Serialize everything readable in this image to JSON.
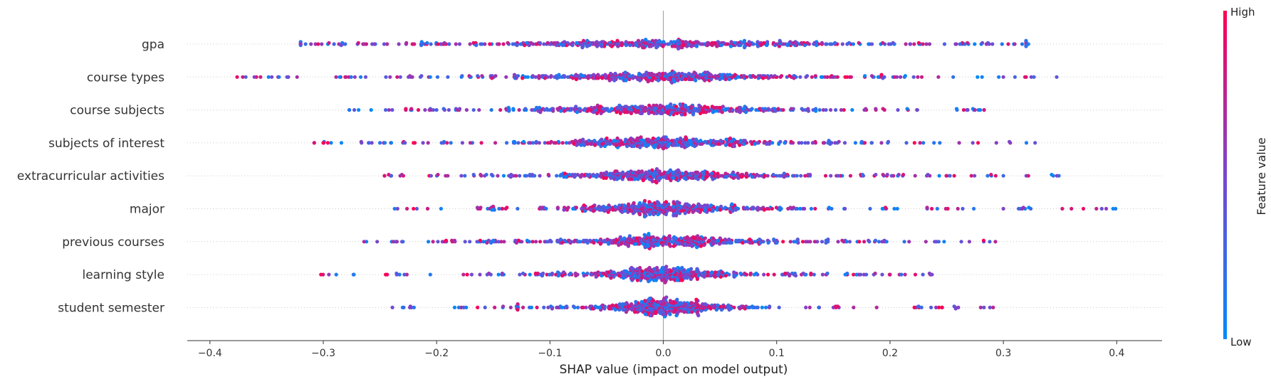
{
  "chart_data": {
    "type": "scatter",
    "subtype": "beeswarm",
    "title": "",
    "xlabel": "SHAP value (impact on model output)",
    "ylabel": "",
    "xlim": [
      -0.42,
      0.44
    ],
    "xticks": [
      -0.4,
      -0.3,
      -0.2,
      -0.1,
      0.0,
      0.1,
      0.2,
      0.3,
      0.4
    ],
    "xtick_labels": [
      "−0.4",
      "−0.3",
      "−0.2",
      "−0.1",
      "0.0",
      "0.1",
      "0.2",
      "0.3",
      "0.4"
    ],
    "grid": false,
    "colorbar": {
      "label": "Feature value",
      "high_label": "High",
      "low_label": "Low",
      "low_color": "#008bfb",
      "high_color": "#ff0052"
    },
    "features": [
      {
        "name": "gpa",
        "min": -0.32,
        "max": 0.32,
        "spread": 0.07,
        "extreme_values": [
          -0.32,
          -0.262,
          -0.255,
          0.285,
          0.31,
          0.322
        ]
      },
      {
        "name": "course types",
        "min": -0.376,
        "max": 0.347,
        "spread": 0.05,
        "extreme_values": [
          -0.376,
          -0.339,
          -0.332,
          -0.28,
          -0.267,
          0.3,
          0.32,
          0.347
        ]
      },
      {
        "name": "course subjects",
        "min": -0.277,
        "max": 0.283,
        "spread": 0.045,
        "extreme_values": [
          -0.277,
          -0.245,
          0.265,
          0.275,
          0.283
        ]
      },
      {
        "name": "subjects of interest",
        "min": -0.308,
        "max": 0.328,
        "spread": 0.04,
        "extreme_values": [
          -0.308,
          -0.3,
          -0.26,
          -0.25,
          -0.24,
          0.273,
          0.328
        ]
      },
      {
        "name": "extracurricular activities",
        "min": -0.246,
        "max": 0.349,
        "spread": 0.04,
        "extreme_values": [
          -0.246,
          -0.24,
          0.3,
          0.322,
          0.349
        ]
      },
      {
        "name": "major",
        "min": -0.237,
        "max": 0.399,
        "spread": 0.035,
        "extreme_values": [
          -0.237,
          0.3,
          0.36,
          0.399
        ]
      },
      {
        "name": "previous courses",
        "min": -0.264,
        "max": 0.293,
        "spread": 0.04,
        "extreme_values": [
          -0.264,
          -0.235,
          0.27,
          0.288,
          0.293
        ]
      },
      {
        "name": "learning style",
        "min": -0.302,
        "max": 0.237,
        "spread": 0.03,
        "extreme_values": [
          -0.302,
          -0.273,
          -0.245,
          0.21,
          0.237
        ]
      },
      {
        "name": "student semester",
        "min": -0.239,
        "max": 0.291,
        "spread": 0.025,
        "extreme_values": [
          -0.239,
          -0.229,
          -0.22,
          0.28,
          0.291
        ]
      }
    ]
  }
}
